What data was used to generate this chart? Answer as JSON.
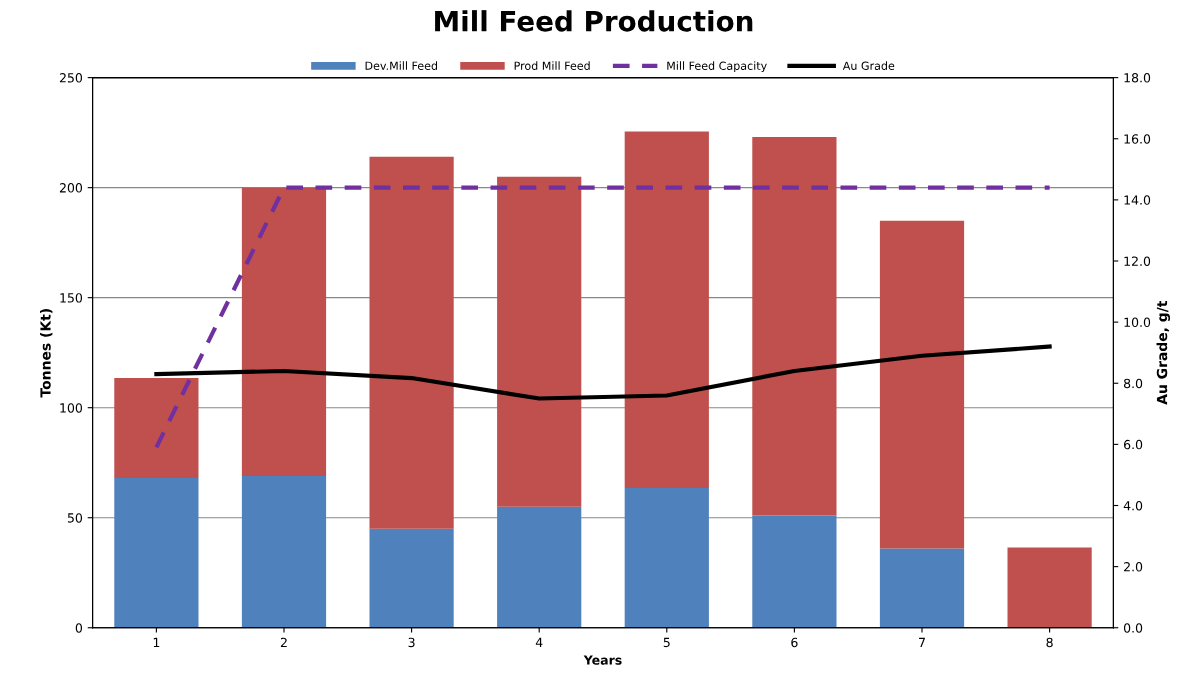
{
  "chart_data": {
    "type": "bar",
    "title": "Mill Feed Production",
    "xlabel": "Years",
    "ylabel": "Tonnes (Kt)",
    "y2label": "Au Grade, g/t",
    "categories": [
      "1",
      "2",
      "3",
      "4",
      "5",
      "6",
      "7",
      "8"
    ],
    "stacked": true,
    "grid": "y",
    "legend": "top",
    "ylim": [
      0,
      250
    ],
    "yticks": [
      0,
      50,
      100,
      150,
      200,
      250
    ],
    "y2lim": [
      0,
      18
    ],
    "y2ticks": [
      {
        "value": 0,
        "label": "0.0"
      },
      {
        "value": 2,
        "label": "2.0"
      },
      {
        "value": 4,
        "label": "4.0"
      },
      {
        "value": 6,
        "label": "6.0"
      },
      {
        "value": 8,
        "label": "8.0"
      },
      {
        "value": 10,
        "label": "10.0"
      },
      {
        "value": 12,
        "label": "12.0"
      },
      {
        "value": 14,
        "label": "14.0"
      },
      {
        "value": 16,
        "label": "16.0"
      },
      {
        "value": 18,
        "label": "18.0"
      }
    ],
    "series": [
      {
        "name": "Dev.Mill Feed",
        "color": "#4f81bd",
        "values": [
          68,
          69,
          45,
          55,
          63.5,
          51,
          36,
          0
        ]
      },
      {
        "name": "Prod Mill Feed",
        "color": "#c0504d",
        "values": [
          45.5,
          131,
          169,
          150,
          162,
          172,
          149,
          36.5
        ]
      },
      {
        "name": "Mill Feed Capacity",
        "type": "line",
        "line_style": "dashed",
        "color": "#7030a0",
        "values": [
          82,
          200,
          200,
          200,
          200,
          200,
          200,
          200
        ]
      },
      {
        "name": "Au Grade",
        "type": "line",
        "axis": "y2",
        "line_style": "solid",
        "color": "#000000",
        "values": [
          8.3,
          8.4,
          8.17,
          7.5,
          7.6,
          8.4,
          8.9,
          9.2
        ]
      }
    ]
  }
}
